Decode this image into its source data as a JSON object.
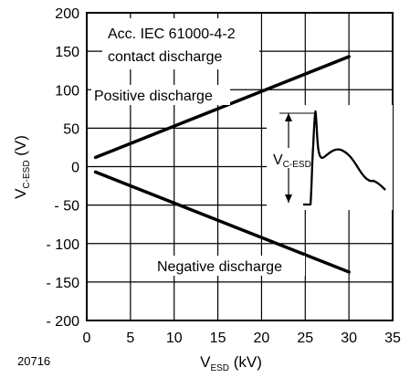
{
  "chart_data": {
    "type": "line",
    "xlabel": {
      "main": "V",
      "sub": "ESD",
      "unit": " (kV)"
    },
    "ylabel": {
      "main": "V",
      "sub": "C-ESD",
      "unit": " (V)"
    },
    "xlim": [
      0,
      35
    ],
    "ylim": [
      -200,
      200
    ],
    "x_ticks": [
      "0",
      "5",
      "10",
      "15",
      "20",
      "25",
      "30",
      "35"
    ],
    "y_ticks": [
      "200",
      "150",
      "100",
      "50",
      "0",
      "- 50",
      "- 100",
      "- 150",
      "- 200"
    ],
    "grid": true,
    "series": [
      {
        "name": "Positive discharge",
        "x": [
          1,
          30
        ],
        "y": [
          12,
          143
        ]
      },
      {
        "name": "Negative discharge",
        "x": [
          1,
          30
        ],
        "y": [
          -7,
          -137
        ]
      }
    ],
    "annotations": {
      "standard_line1": "Acc. IEC 61000-4-2",
      "standard_line2": "contact discharge"
    },
    "inset": {
      "label_main": "V",
      "label_sub": "C-ESD"
    },
    "figure_number": "20716"
  }
}
